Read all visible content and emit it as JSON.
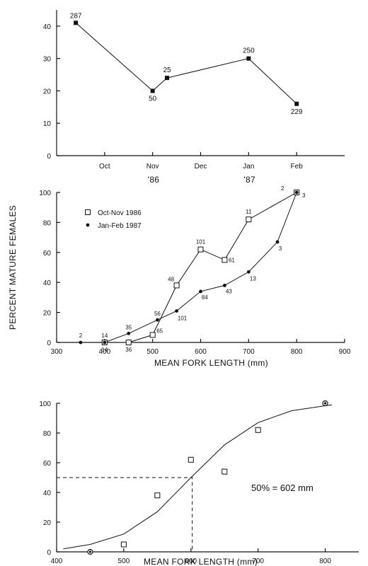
{
  "chart_data": [
    {
      "type": "line",
      "title": "",
      "xlabel": "",
      "ylabel": "",
      "categories": [
        "Oct",
        "Nov",
        "Dec",
        "Jan",
        "Feb"
      ],
      "year_labels": [
        "'86",
        "'87"
      ],
      "ylim": [
        0,
        45
      ],
      "yticks": [
        0,
        10,
        20,
        30,
        40
      ],
      "series": [
        {
          "marker": "filled-square",
          "points": [
            {
              "x": 0.4,
              "y": 41,
              "label": "287"
            },
            {
              "x": 2.0,
              "y": 20,
              "label": "50"
            },
            {
              "x": 2.3,
              "y": 24,
              "label": "25"
            },
            {
              "x": 4.0,
              "y": 30,
              "label": "250"
            },
            {
              "x": 5.0,
              "y": 16,
              "label": "229"
            }
          ]
        }
      ],
      "grid": false,
      "legend": "none"
    },
    {
      "type": "line",
      "title": "",
      "xlabel": "MEAN FORK LENGTH (mm)",
      "ylabel": "PERCENT MATURE FEMALES",
      "xlim": [
        300,
        900
      ],
      "xticks": [
        300,
        400,
        500,
        600,
        700,
        800,
        900
      ],
      "ylim": [
        0,
        100
      ],
      "yticks": [
        0,
        20,
        40,
        60,
        80,
        100
      ],
      "legend": "top-left",
      "grid": false,
      "series": [
        {
          "name": "Oct-Nov 1986",
          "marker": "open-square",
          "points": [
            {
              "x": 400,
              "y": 0,
              "label": "14"
            },
            {
              "x": 450,
              "y": 0,
              "label": "36"
            },
            {
              "x": 500,
              "y": 5,
              "label": "65"
            },
            {
              "x": 550,
              "y": 38,
              "label": "48"
            },
            {
              "x": 600,
              "y": 62,
              "label": "101"
            },
            {
              "x": 650,
              "y": 55,
              "label": "61"
            },
            {
              "x": 700,
              "y": 82,
              "label": "11"
            },
            {
              "x": 800,
              "y": 100,
              "label": "2"
            }
          ]
        },
        {
          "name": "Jan-Feb 1987",
          "marker": "filled-dot",
          "points": [
            {
              "x": 350,
              "y": 0,
              "label": "2"
            },
            {
              "x": 400,
              "y": 0,
              "label": "14"
            },
            {
              "x": 450,
              "y": 6,
              "label": "35"
            },
            {
              "x": 510,
              "y": 15,
              "label": "56"
            },
            {
              "x": 550,
              "y": 21,
              "label": "101"
            },
            {
              "x": 600,
              "y": 34,
              "label": "84"
            },
            {
              "x": 650,
              "y": 38,
              "label": "43"
            },
            {
              "x": 700,
              "y": 47,
              "label": "13"
            },
            {
              "x": 760,
              "y": 67,
              "label": "3"
            },
            {
              "x": 800,
              "y": 100,
              "label": "3"
            }
          ]
        }
      ]
    },
    {
      "type": "scatter",
      "title": "",
      "xlabel": "MEAN FORK LENGTH (mm)",
      "ylabel": "",
      "xlim": [
        400,
        850
      ],
      "xticks": [
        400,
        500,
        600,
        700,
        800
      ],
      "ylim": [
        0,
        100
      ],
      "yticks": [
        0,
        20,
        40,
        60,
        80,
        100
      ],
      "grid": false,
      "legend": "none",
      "annotation": "50% = 602 mm",
      "marker_points": [
        {
          "x": 450,
          "y": 0
        },
        {
          "x": 500,
          "y": 5
        },
        {
          "x": 550,
          "y": 38
        },
        {
          "x": 600,
          "y": 62
        },
        {
          "x": 650,
          "y": 54
        },
        {
          "x": 700,
          "y": 82
        },
        {
          "x": 800,
          "y": 100
        }
      ],
      "fitted_curve": [
        {
          "x": 410,
          "y": 2
        },
        {
          "x": 450,
          "y": 5
        },
        {
          "x": 500,
          "y": 12
        },
        {
          "x": 550,
          "y": 27
        },
        {
          "x": 600,
          "y": 50
        },
        {
          "x": 650,
          "y": 72
        },
        {
          "x": 700,
          "y": 87
        },
        {
          "x": 750,
          "y": 95
        },
        {
          "x": 810,
          "y": 99
        }
      ],
      "reference": {
        "x": 602,
        "y": 50
      }
    }
  ]
}
